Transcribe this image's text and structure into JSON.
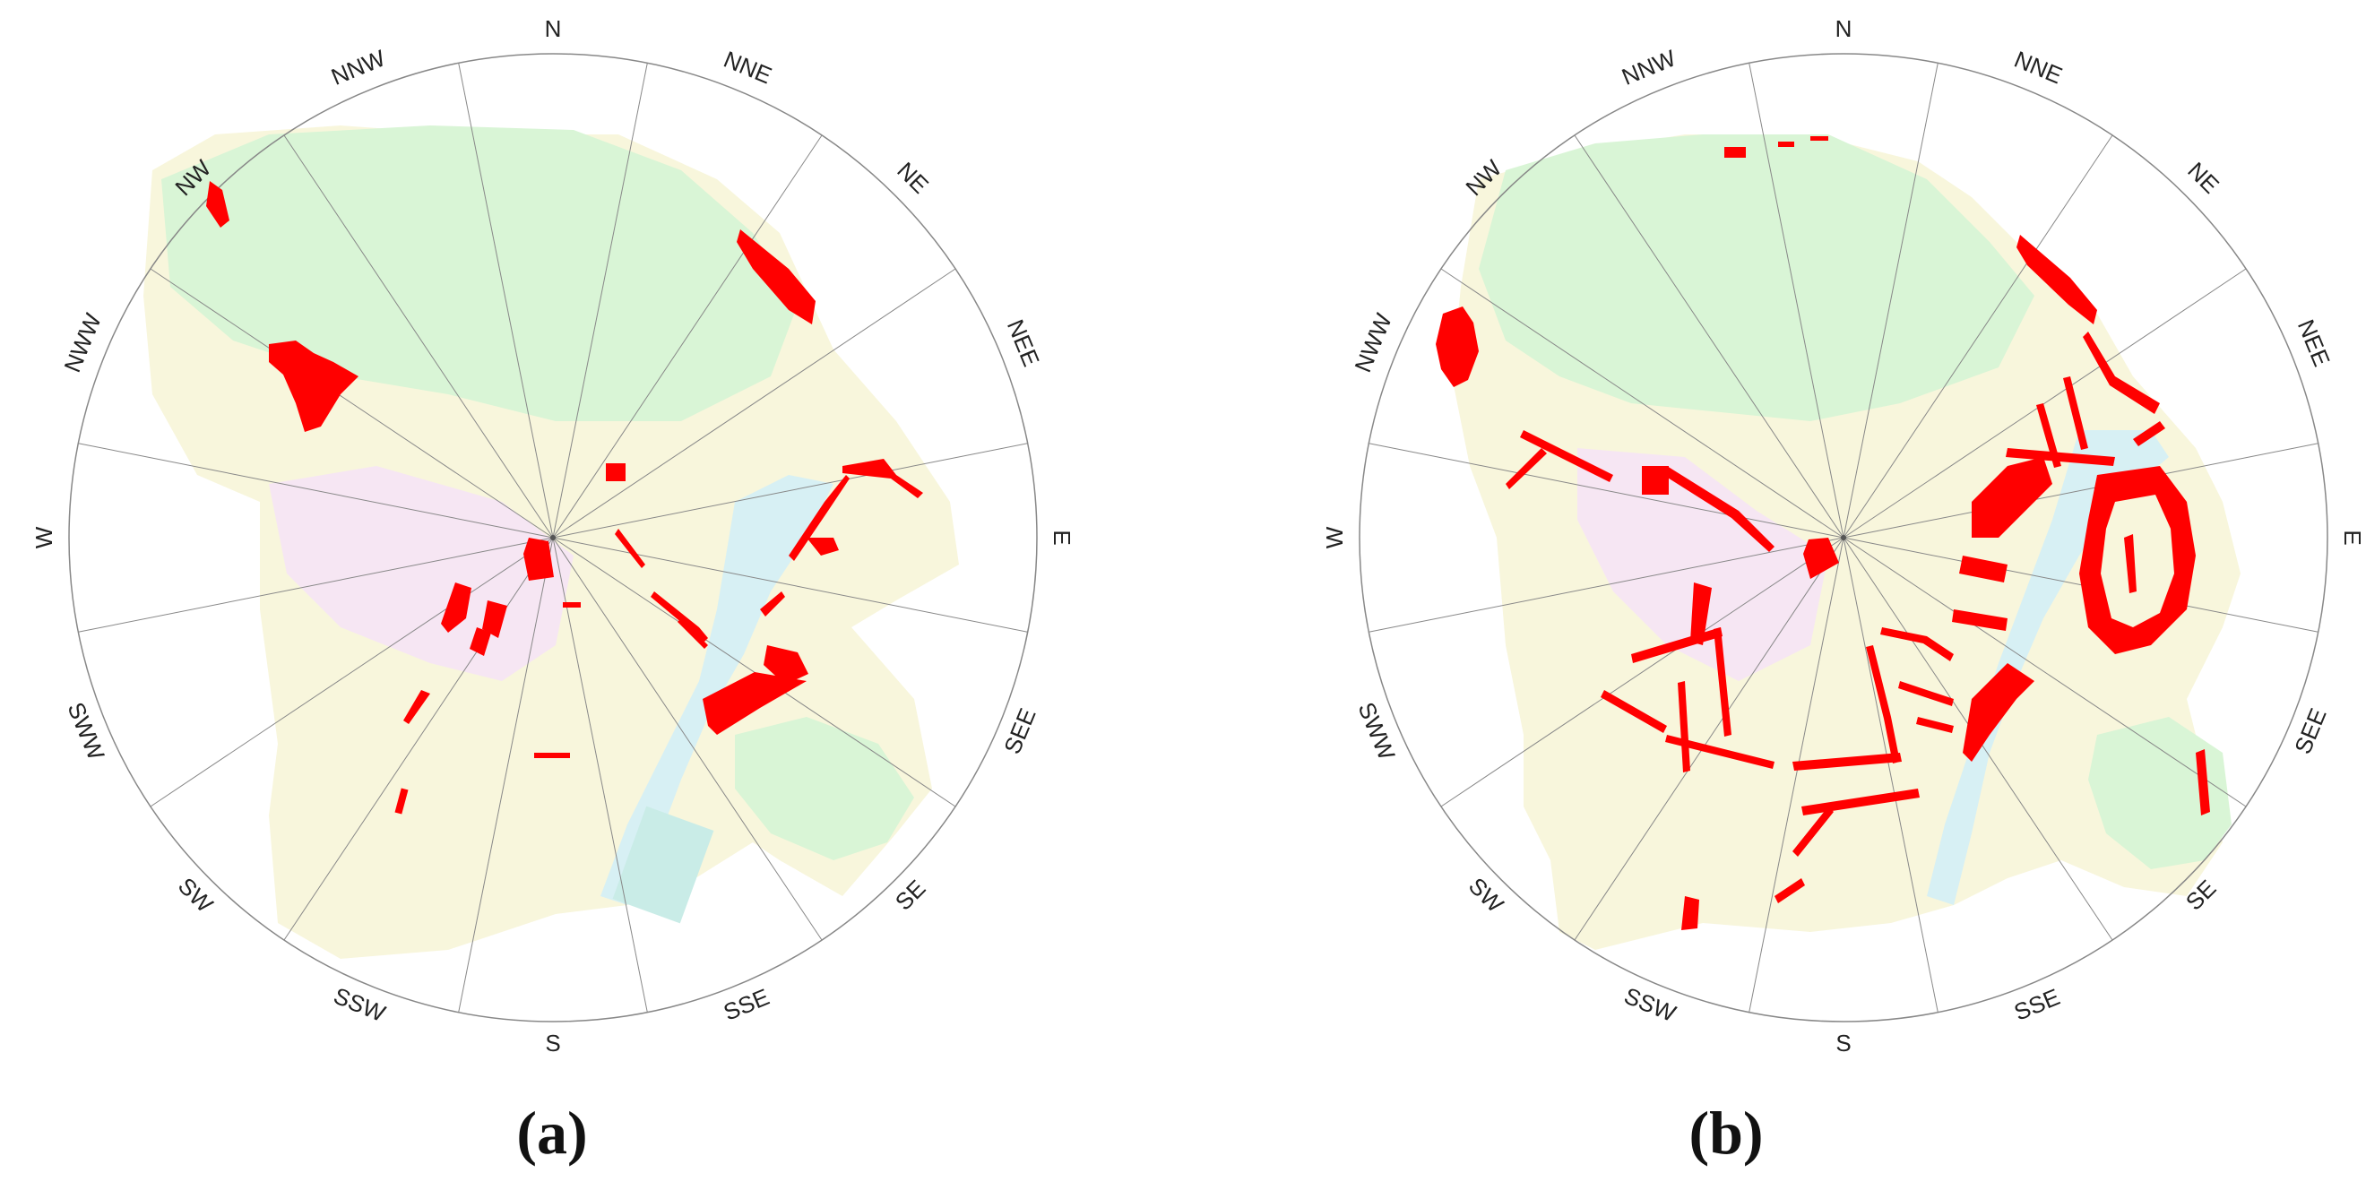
{
  "directions": [
    "N",
    "NNE",
    "NE",
    "NEE",
    "E",
    "SEE",
    "SE",
    "SSE",
    "S",
    "SSW",
    "SW",
    "SWW",
    "W",
    "NWW",
    "NW",
    "NNW"
  ],
  "panels": [
    {
      "id": "a",
      "caption": "(a)"
    },
    {
      "id": "b",
      "caption": "(b)"
    }
  ],
  "colors": {
    "highlight": "#ff0000",
    "green": "#d9f5d6",
    "yellow": "#f8f6dc",
    "pink": "#f6e6f3",
    "water": "#d7f0f4",
    "grid": "#888888"
  }
}
